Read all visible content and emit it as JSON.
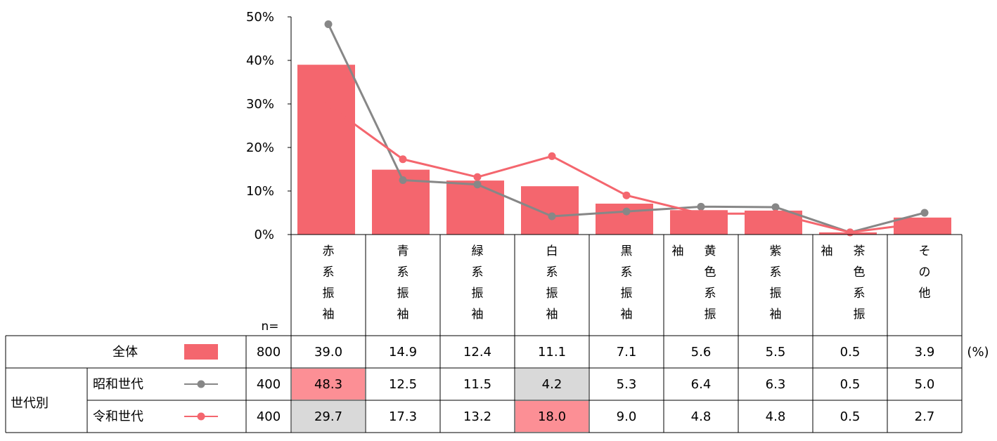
{
  "chart_data": {
    "type": "bar",
    "y_ticks": [
      "50%",
      "40%",
      "30%",
      "20%",
      "10%",
      "0%"
    ],
    "ylim": [
      0,
      50
    ],
    "categories": [
      "赤系振袖",
      "青系振袖",
      "緑系振袖",
      "白系振袖",
      "黒系振袖",
      "黄色系振袖",
      "紫系振袖",
      "茶色系振袖",
      "その他"
    ],
    "category_labels": [
      {
        "main": [
          "赤",
          "系",
          "振",
          "袖"
        ],
        "side": ""
      },
      {
        "main": [
          "青",
          "系",
          "振",
          "袖"
        ],
        "side": ""
      },
      {
        "main": [
          "緑",
          "系",
          "振",
          "袖"
        ],
        "side": ""
      },
      {
        "main": [
          "白",
          "系",
          "振",
          "袖"
        ],
        "side": ""
      },
      {
        "main": [
          "黒",
          "系",
          "振",
          "袖"
        ],
        "side": ""
      },
      {
        "main": [
          "黄",
          "色",
          "系",
          "振"
        ],
        "side": "袖"
      },
      {
        "main": [
          "紫",
          "系",
          "振",
          "袖"
        ],
        "side": ""
      },
      {
        "main": [
          "茶",
          "色",
          "系",
          "振"
        ],
        "side": "袖"
      },
      {
        "main": [
          "そ",
          "の",
          "他"
        ],
        "side": ""
      }
    ],
    "series": [
      {
        "name": "全体",
        "kind": "bar",
        "color": "#f4666e",
        "n": "800",
        "values": [
          "39.0",
          "14.9",
          "12.4",
          "11.1",
          "7.1",
          "5.6",
          "5.5",
          "0.5",
          "3.9"
        ]
      },
      {
        "name": "昭和世代",
        "kind": "line",
        "color": "#878787",
        "n": "400",
        "values": [
          "48.3",
          "12.5",
          "11.5",
          "4.2",
          "5.3",
          "6.4",
          "6.3",
          "0.5",
          "5.0"
        ]
      },
      {
        "name": "令和世代",
        "kind": "line",
        "color": "#f4666e",
        "n": "400",
        "values": [
          "29.7",
          "17.3",
          "13.2",
          "18.0",
          "9.0",
          "4.8",
          "4.8",
          "0.5",
          "2.7"
        ]
      }
    ],
    "table": {
      "n_header": "n=",
      "unit": "(%)",
      "group_label": "世代別",
      "highlight_colors": {
        "high": "#fc8f95",
        "low": "#d9d9d9"
      },
      "highlights": [
        {
          "row": 1,
          "col": 0,
          "type": "high"
        },
        {
          "row": 1,
          "col": 3,
          "type": "low"
        },
        {
          "row": 2,
          "col": 0,
          "type": "low"
        },
        {
          "row": 2,
          "col": 3,
          "type": "high"
        }
      ]
    },
    "grid": false,
    "legend": "in table rows"
  }
}
